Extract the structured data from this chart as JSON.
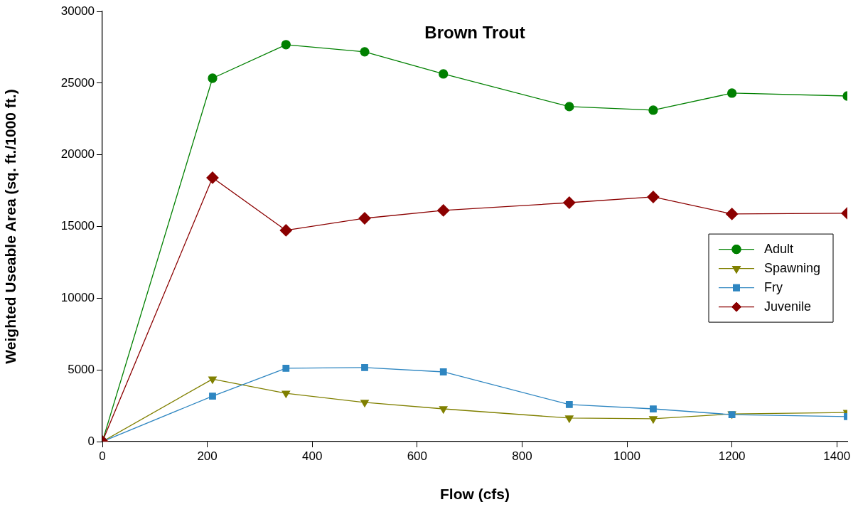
{
  "chart_data": {
    "type": "line",
    "title": "Brown Trout",
    "xlabel": "Flow (cfs)",
    "ylabel": "Weighted Useable Area (sq. ft./1000 ft.)",
    "x": [
      0,
      210,
      350,
      500,
      650,
      890,
      1050,
      1200,
      1420
    ],
    "xlim": [
      0,
      1420
    ],
    "xticks": [
      0,
      200,
      400,
      600,
      800,
      1000,
      1200,
      1400
    ],
    "ylim": [
      0,
      30000
    ],
    "yticks": [
      0,
      5000,
      10000,
      15000,
      20000,
      25000,
      30000
    ],
    "grid": false,
    "legend": "right",
    "line_style": "solid",
    "series": [
      {
        "name": "Adult",
        "color": "#008000",
        "marker": "circle",
        "values": [
          0,
          25340,
          27680,
          27180,
          25640,
          23360,
          23110,
          24300,
          24100
        ]
      },
      {
        "name": "Spawning",
        "color": "#808000",
        "marker": "triangle",
        "values": [
          0,
          4360,
          3370,
          2730,
          2280,
          1640,
          1590,
          1930,
          2030
        ]
      },
      {
        "name": "Fry",
        "color": "#2e86c1",
        "marker": "square",
        "values": [
          0,
          3170,
          5110,
          5160,
          4860,
          2580,
          2280,
          1880,
          1740
        ]
      },
      {
        "name": "Juvenile",
        "color": "#8b0000",
        "marker": "diamond",
        "values": [
          0,
          18400,
          14730,
          15570,
          16120,
          16660,
          17060,
          15870,
          15920
        ]
      }
    ]
  }
}
